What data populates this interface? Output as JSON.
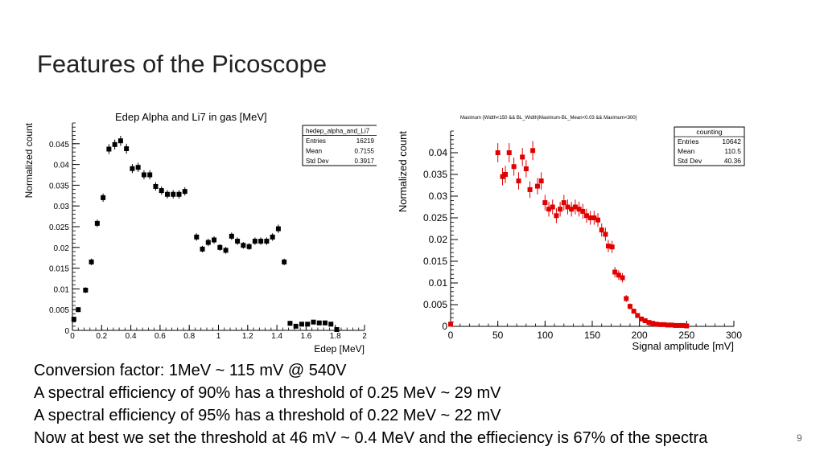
{
  "slide": {
    "title": "Features of the Picoscope",
    "page_number": "9",
    "lines": [
      "Conversion factor: 1MeV ~ 115 mV @ 540V",
      "A spectral efficiency of 90% has a threshold of  0.25 MeV ~ 29 mV",
      "A spectral efficiency of 95% has a threshold of  0.22 MeV ~ 22 mV",
      "Now at best we set the threshold at 46 mV ~ 0.4 MeV and the effieciency is 67% of the spectra"
    ]
  },
  "chart_data": [
    {
      "type": "scatter",
      "title": "Edep Alpha and Li7 in gas [MeV]",
      "xlabel": "Edep [MeV]",
      "ylabel": "Normalized count",
      "xlim": [
        0,
        2
      ],
      "ylim": [
        0,
        0.05
      ],
      "xticks": [
        "0",
        "0.2",
        "0.4",
        "0.6",
        "0.8",
        "1",
        "1.2",
        "1.4",
        "1.6",
        "1.8",
        "2"
      ],
      "yticks": [
        "0",
        "0.005",
        "0.01",
        "0.015",
        "0.02",
        "0.025",
        "0.03",
        "0.035",
        "0.04",
        "0.045"
      ],
      "color": "#000000",
      "stats": {
        "name": "hedep_alpha_and_Li7",
        "rows": [
          [
            "Entries",
            "16219"
          ],
          [
            "Mean",
            "0.7155"
          ],
          [
            "Std Dev",
            "0.3917"
          ]
        ]
      },
      "x": [
        0.01,
        0.04,
        0.09,
        0.13,
        0.17,
        0.21,
        0.25,
        0.29,
        0.33,
        0.37,
        0.41,
        0.45,
        0.49,
        0.53,
        0.57,
        0.61,
        0.65,
        0.69,
        0.73,
        0.77,
        0.85,
        0.89,
        0.93,
        0.97,
        1.01,
        1.05,
        1.09,
        1.13,
        1.17,
        1.21,
        1.25,
        1.29,
        1.33,
        1.37,
        1.41,
        1.45,
        1.49,
        1.53,
        1.57,
        1.61,
        1.65,
        1.69,
        1.73,
        1.77,
        1.81
      ],
      "y": [
        0.0027,
        0.005,
        0.0097,
        0.0165,
        0.0258,
        0.032,
        0.0437,
        0.0448,
        0.0457,
        0.0438,
        0.039,
        0.0393,
        0.0375,
        0.0375,
        0.0347,
        0.0337,
        0.0328,
        0.0328,
        0.0328,
        0.0335,
        0.0225,
        0.0196,
        0.0212,
        0.0218,
        0.02,
        0.0193,
        0.0227,
        0.0215,
        0.0205,
        0.0202,
        0.0215,
        0.0215,
        0.0215,
        0.0225,
        0.0245,
        0.0165,
        0.0017,
        0.001,
        0.0015,
        0.0015,
        0.002,
        0.0018,
        0.0018,
        0.0015,
        0.0002
      ],
      "yerr": [
        0.0005,
        0.0006,
        0.0007,
        0.0008,
        0.0009,
        0.001,
        0.0012,
        0.0012,
        0.0012,
        0.0012,
        0.0011,
        0.0011,
        0.0011,
        0.0011,
        0.001,
        0.001,
        0.001,
        0.001,
        0.001,
        0.001,
        0.0009,
        0.0008,
        0.0009,
        0.0009,
        0.0008,
        0.0008,
        0.0009,
        0.0009,
        0.0008,
        0.0008,
        0.0009,
        0.0009,
        0.0009,
        0.0009,
        0.001,
        0.0008,
        0.0003,
        0.0002,
        0.0003,
        0.0003,
        0.0003,
        0.0003,
        0.0003,
        0.0003,
        0.0001
      ]
    },
    {
      "type": "scatter",
      "title": "Maximum {Width<150 && BL_Width}Maximum-BL_Mean<0.03 && Maximum<300}",
      "xlabel": "Signal amplitude [mV]",
      "ylabel": "Normalized count",
      "xlim": [
        0,
        300
      ],
      "ylim": [
        0,
        0.045
      ],
      "xticks": [
        "0",
        "50",
        "100",
        "150",
        "200",
        "250",
        "300"
      ],
      "yticks": [
        "0",
        "0.005",
        "0.01",
        "0.015",
        "0.02",
        "0.025",
        "0.03",
        "0.035",
        "0.04"
      ],
      "color": "#e00000",
      "stats": {
        "name": "counting",
        "rows": [
          [
            "Entries",
            "10642"
          ],
          [
            "Mean",
            "110.5"
          ],
          [
            "Std Dev",
            "40.36"
          ]
        ]
      },
      "x": [
        0,
        50,
        55,
        58,
        62,
        67,
        72,
        76,
        80,
        84,
        87,
        92,
        96,
        100,
        104,
        108,
        112,
        116,
        120,
        124,
        128,
        132,
        136,
        140,
        144,
        148,
        152,
        156,
        160,
        164,
        167,
        171,
        174,
        178,
        182,
        186,
        190,
        194,
        198,
        202,
        206,
        210,
        214,
        218,
        222,
        226,
        230,
        234,
        238,
        242,
        246,
        250
      ],
      "y": [
        0.0005,
        0.04,
        0.0345,
        0.035,
        0.04,
        0.0368,
        0.0335,
        0.039,
        0.0363,
        0.0315,
        0.0405,
        0.0323,
        0.0335,
        0.0285,
        0.027,
        0.0275,
        0.0255,
        0.027,
        0.0285,
        0.0275,
        0.027,
        0.0275,
        0.027,
        0.0265,
        0.0255,
        0.025,
        0.025,
        0.0245,
        0.0222,
        0.0212,
        0.0185,
        0.0183,
        0.0125,
        0.0118,
        0.0112,
        0.0064,
        0.0046,
        0.0035,
        0.0025,
        0.0017,
        0.0013,
        0.0009,
        0.0007,
        0.0005,
        0.0004,
        0.0004,
        0.0003,
        0.0003,
        0.0002,
        0.0002,
        0.0002,
        0.0001
      ],
      "yerr": [
        0.0002,
        0.0022,
        0.002,
        0.002,
        0.0022,
        0.0021,
        0.002,
        0.0021,
        0.002,
        0.0019,
        0.0022,
        0.0019,
        0.002,
        0.0018,
        0.0017,
        0.0017,
        0.0017,
        0.0017,
        0.0018,
        0.0017,
        0.0017,
        0.0017,
        0.0017,
        0.0017,
        0.0016,
        0.0016,
        0.0016,
        0.0016,
        0.0015,
        0.0015,
        0.0014,
        0.0014,
        0.0012,
        0.0011,
        0.0011,
        0.0008,
        0.0007,
        0.0006,
        0.0005,
        0.0004,
        0.0004,
        0.0003,
        0.0003,
        0.0002,
        0.0002,
        0.0002,
        0.0002,
        0.0002,
        0.0001,
        0.0001,
        0.0001,
        0.0001
      ]
    }
  ]
}
